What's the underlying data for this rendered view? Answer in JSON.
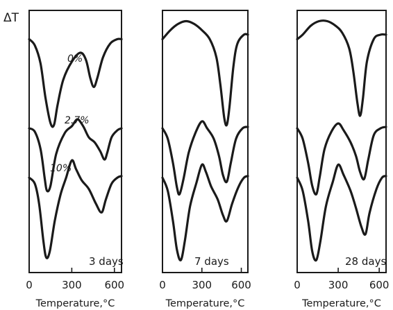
{
  "chart_data": [
    {
      "type": "line",
      "ylabel": "ΔT",
      "xlabel": "Temperature,°C",
      "xlim": [
        0,
        650
      ],
      "xticks": [
        "0",
        "300",
        "600"
      ],
      "panel_label": "3 days",
      "grid": false,
      "series": [
        {
          "name": "0%",
          "points": [
            [
              0,
              0.05
            ],
            [
              40,
              0.12
            ],
            [
              80,
              0.32
            ],
            [
              115,
              0.7
            ],
            [
              150,
              0.98
            ],
            [
              175,
              1.0
            ],
            [
              200,
              0.78
            ],
            [
              240,
              0.5
            ],
            [
              300,
              0.3
            ],
            [
              360,
              0.2
            ],
            [
              400,
              0.28
            ],
            [
              430,
              0.48
            ],
            [
              455,
              0.58
            ],
            [
              480,
              0.48
            ],
            [
              520,
              0.25
            ],
            [
              570,
              0.1
            ],
            [
              620,
              0.05
            ],
            [
              650,
              0.05
            ]
          ]
        },
        {
          "name": "2.7%",
          "points": [
            [
              0,
              0.05
            ],
            [
              40,
              0.1
            ],
            [
              80,
              0.35
            ],
            [
              110,
              0.78
            ],
            [
              125,
              0.95
            ],
            [
              150,
              0.88
            ],
            [
              190,
              0.42
            ],
            [
              250,
              0.12
            ],
            [
              300,
              0.02
            ],
            [
              340,
              -0.08
            ],
            [
              380,
              0.02
            ],
            [
              420,
              0.18
            ],
            [
              460,
              0.25
            ],
            [
              500,
              0.38
            ],
            [
              530,
              0.5
            ],
            [
              550,
              0.4
            ],
            [
              580,
              0.18
            ],
            [
              620,
              0.08
            ],
            [
              650,
              0.05
            ]
          ]
        },
        {
          "name": "10%",
          "points": [
            [
              0,
              0.05
            ],
            [
              40,
              0.12
            ],
            [
              70,
              0.35
            ],
            [
              100,
              0.78
            ],
            [
              120,
              0.97
            ],
            [
              145,
              0.9
            ],
            [
              180,
              0.55
            ],
            [
              220,
              0.25
            ],
            [
              260,
              0.05
            ],
            [
              300,
              -0.15
            ],
            [
              330,
              -0.05
            ],
            [
              370,
              0.08
            ],
            [
              420,
              0.18
            ],
            [
              470,
              0.35
            ],
            [
              510,
              0.45
            ],
            [
              540,
              0.3
            ],
            [
              580,
              0.12
            ],
            [
              620,
              0.05
            ],
            [
              650,
              0.03
            ]
          ]
        }
      ]
    },
    {
      "type": "line",
      "ylabel": "",
      "xlabel": "Temperature,°C",
      "xlim": [
        0,
        650
      ],
      "xticks": [
        "0",
        "300",
        "600"
      ],
      "panel_label": "7 days",
      "grid": false,
      "series": [
        {
          "name": "",
          "points": [
            [
              0,
              0.05
            ],
            [
              60,
              -0.05
            ],
            [
              120,
              -0.12
            ],
            [
              180,
              -0.15
            ],
            [
              240,
              -0.12
            ],
            [
              300,
              -0.05
            ],
            [
              360,
              0.05
            ],
            [
              410,
              0.25
            ],
            [
              440,
              0.55
            ],
            [
              470,
              0.92
            ],
            [
              490,
              1.0
            ],
            [
              510,
              0.8
            ],
            [
              540,
              0.35
            ],
            [
              570,
              0.1
            ],
            [
              620,
              0.0
            ],
            [
              650,
              0.0
            ]
          ]
        },
        {
          "name": "",
          "points": [
            [
              0,
              0.05
            ],
            [
              40,
              0.2
            ],
            [
              80,
              0.55
            ],
            [
              110,
              0.9
            ],
            [
              130,
              1.0
            ],
            [
              160,
              0.78
            ],
            [
              200,
              0.4
            ],
            [
              250,
              0.12
            ],
            [
              300,
              -0.05
            ],
            [
              340,
              0.05
            ],
            [
              390,
              0.2
            ],
            [
              430,
              0.45
            ],
            [
              460,
              0.72
            ],
            [
              490,
              0.82
            ],
            [
              520,
              0.55
            ],
            [
              560,
              0.2
            ],
            [
              610,
              0.05
            ],
            [
              650,
              0.03
            ]
          ]
        },
        {
          "name": "",
          "points": [
            [
              0,
              0.05
            ],
            [
              40,
              0.2
            ],
            [
              80,
              0.55
            ],
            [
              110,
              0.88
            ],
            [
              140,
              1.0
            ],
            [
              170,
              0.78
            ],
            [
              210,
              0.38
            ],
            [
              260,
              0.1
            ],
            [
              300,
              -0.1
            ],
            [
              330,
              -0.02
            ],
            [
              370,
              0.15
            ],
            [
              420,
              0.3
            ],
            [
              460,
              0.48
            ],
            [
              490,
              0.55
            ],
            [
              530,
              0.35
            ],
            [
              580,
              0.15
            ],
            [
              620,
              0.05
            ],
            [
              650,
              0.03
            ]
          ]
        }
      ]
    },
    {
      "type": "line",
      "ylabel": "",
      "xlabel": "Temperature,°C",
      "xlim": [
        0,
        650
      ],
      "xticks": [
        "0",
        "300",
        "600"
      ],
      "panel_label": "28 days",
      "grid": false,
      "series": [
        {
          "name": "",
          "points": [
            [
              0,
              0.05
            ],
            [
              40,
              0.0
            ],
            [
              100,
              -0.1
            ],
            [
              160,
              -0.15
            ],
            [
              220,
              -0.15
            ],
            [
              280,
              -0.1
            ],
            [
              330,
              -0.02
            ],
            [
              380,
              0.15
            ],
            [
              410,
              0.4
            ],
            [
              440,
              0.75
            ],
            [
              460,
              0.9
            ],
            [
              480,
              0.72
            ],
            [
              510,
              0.3
            ],
            [
              560,
              0.05
            ],
            [
              610,
              0.0
            ],
            [
              650,
              0.0
            ]
          ]
        },
        {
          "name": "",
          "points": [
            [
              0,
              0.05
            ],
            [
              40,
              0.2
            ],
            [
              80,
              0.55
            ],
            [
              110,
              0.88
            ],
            [
              140,
              1.0
            ],
            [
              165,
              0.75
            ],
            [
              200,
              0.35
            ],
            [
              250,
              0.1
            ],
            [
              300,
              -0.02
            ],
            [
              340,
              0.08
            ],
            [
              390,
              0.25
            ],
            [
              430,
              0.45
            ],
            [
              460,
              0.68
            ],
            [
              490,
              0.78
            ],
            [
              520,
              0.5
            ],
            [
              560,
              0.15
            ],
            [
              610,
              0.05
            ],
            [
              650,
              0.03
            ]
          ]
        },
        {
          "name": "",
          "points": [
            [
              0,
              0.05
            ],
            [
              40,
              0.2
            ],
            [
              80,
              0.55
            ],
            [
              110,
              0.9
            ],
            [
              140,
              1.0
            ],
            [
              170,
              0.78
            ],
            [
              210,
              0.38
            ],
            [
              260,
              0.1
            ],
            [
              300,
              -0.1
            ],
            [
              340,
              0.02
            ],
            [
              390,
              0.2
            ],
            [
              430,
              0.4
            ],
            [
              470,
              0.62
            ],
            [
              500,
              0.7
            ],
            [
              530,
              0.45
            ],
            [
              580,
              0.18
            ],
            [
              620,
              0.05
            ],
            [
              650,
              0.03
            ]
          ]
        }
      ]
    }
  ]
}
